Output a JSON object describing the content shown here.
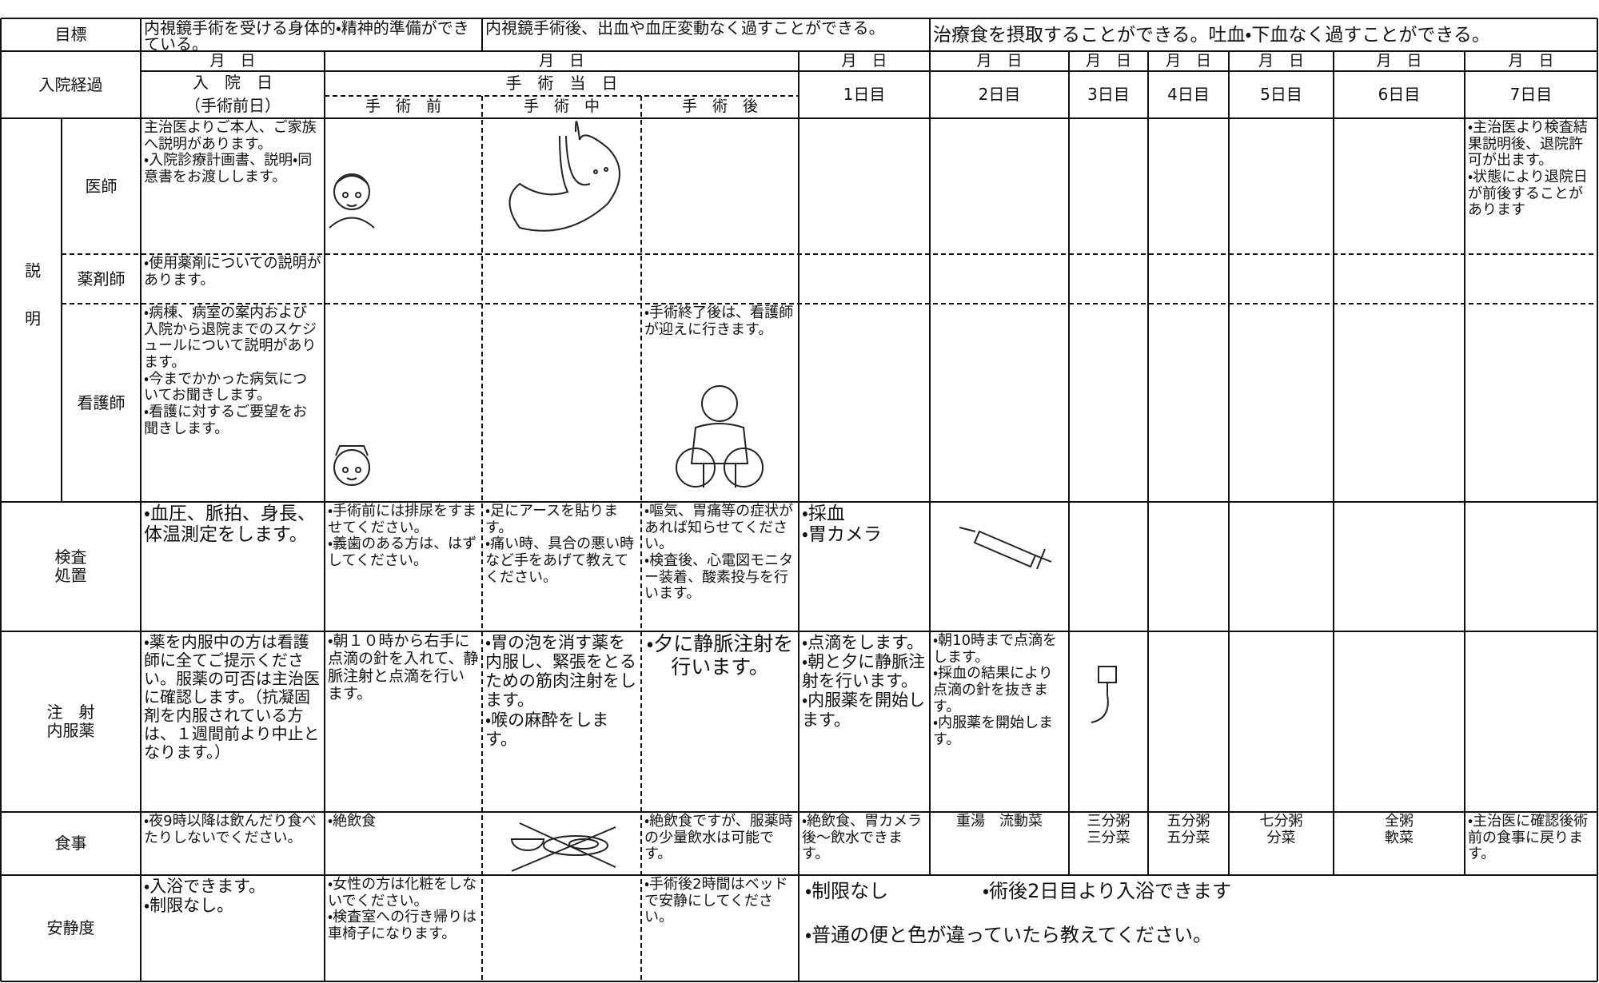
{
  "goal": {
    "label": "目標",
    "items": [
      "内視鏡手術を受ける身体的・精神的準備ができている。",
      "内視鏡手術後、出血や血圧変動なく過すことができる。",
      "治療食を摂取することができる。吐血・下血なく過すことができる。"
    ]
  },
  "course": {
    "label": "入院経過",
    "dates": [
      "月　日",
      "月　日",
      "月　日",
      "月　日",
      "月　日",
      "月　日",
      "月　日",
      "月　日",
      "月　日"
    ],
    "admission_day": "入　院　日",
    "admission_note": "（手術前日）",
    "surgery_day": "手　術　当　日",
    "phases": [
      "手　術　前",
      "手　術　中",
      "手　術　後"
    ],
    "days": [
      "1日目",
      "2日目",
      "3日目",
      "4日目",
      "5日目",
      "6日目",
      "7日目"
    ]
  },
  "explanation": {
    "label": "説明",
    "roles": [
      {
        "label": "医師",
        "cells": [
          "主治医よりご本人、ご家族へ説明があります。\n・入院診療計画書、説明・同意書をお渡しします。",
          null,
          null,
          null,
          null,
          null,
          null,
          null,
          null,
          null,
          "・主治医より検査結果説明後、退院許可が出ます。\n・状態により退院日が前後することがあります"
        ]
      },
      {
        "label": "薬剤師",
        "cells": [
          "・使用薬剤についての説明があります。",
          null,
          null,
          null,
          null,
          null,
          null,
          null,
          null,
          null,
          null
        ]
      },
      {
        "label": "看護師",
        "cells": [
          "・病棟、病室の案内および入院から退院までのスケジュールについて説明があります。\n・今までかかった病気についてお聞きします。\n・看護に対するご要望をお聞きします。",
          null,
          null,
          "・手術終了後は、看護師が迎えに行きます。",
          null,
          null,
          null,
          null,
          null,
          null,
          null
        ]
      }
    ]
  },
  "exam": {
    "label": "検査\n処置",
    "cells": [
      "・血圧、脈拍、身長、体温測定をします。",
      "・手術前には排尿をすませてください。\n・義歯のある方は、はずしてください。",
      "・足にアースを貼ります。\n・痛い時、具合の悪い時など手をあげて教えてください。",
      "・嘔気、胃痛等の症状があれば知らせてください。\n・検査後、心電図モニター装着、酸素投与を行います。",
      "・採血\n・胃カメラ",
      null,
      null,
      null,
      null,
      null,
      null
    ]
  },
  "medication": {
    "label": "注　射\n内服薬",
    "cells": [
      "・薬を内服中の方は看護師に全てご提示ください。服薬の可否は主治医に確認します。（抗凝固剤を内服されている方は、１週間前より中止となります。）",
      "・朝１０時から右手に点滴の針を入れて、静脈注射と点滴を行います。",
      "・胃の泡を消す薬を内服し、緊張をとるための筋肉注射をします。\n・喉の麻酔をします。",
      "・夕に静脈注射を行います。",
      "・点滴をします。\n・朝と夕に静脈注射を行います。\n・内服薬を開始します。",
      "・朝10時まで点滴をします。\n・採血の結果により点滴の針を抜きます。\n・内服薬を開始します。",
      null,
      null,
      null,
      null,
      null
    ]
  },
  "meals": {
    "label": "食事",
    "cells": [
      "・夜9時以降は飲んだり食べたりしないでください。",
      "・絶飲食",
      null,
      "・絶飲食ですが、服薬時の少量飲水は可能です。",
      "・絶飲食、胃カメラ後～飲水できます。",
      "重湯　流動菜",
      "三分粥\n三分菜",
      "五分粥\n五分菜",
      "七分粥\n分菜",
      "全粥\n軟菜",
      "・主治医に確認後術前の食事に戻ります。"
    ]
  },
  "rest": {
    "label": "安静度",
    "cells": [
      "・入浴できます。\n・制限なし。",
      "・女性の方は化粧をしないでください。\n・検査室への行き帰りは車椅子になります。",
      null,
      "・手術後2時間はベッドで安静にしてください。"
    ],
    "after_surgery": [
      "・制限なし",
      "・術後2日目より入浴できます",
      "・普通の便と色が違っていたら教えてください。"
    ]
  }
}
